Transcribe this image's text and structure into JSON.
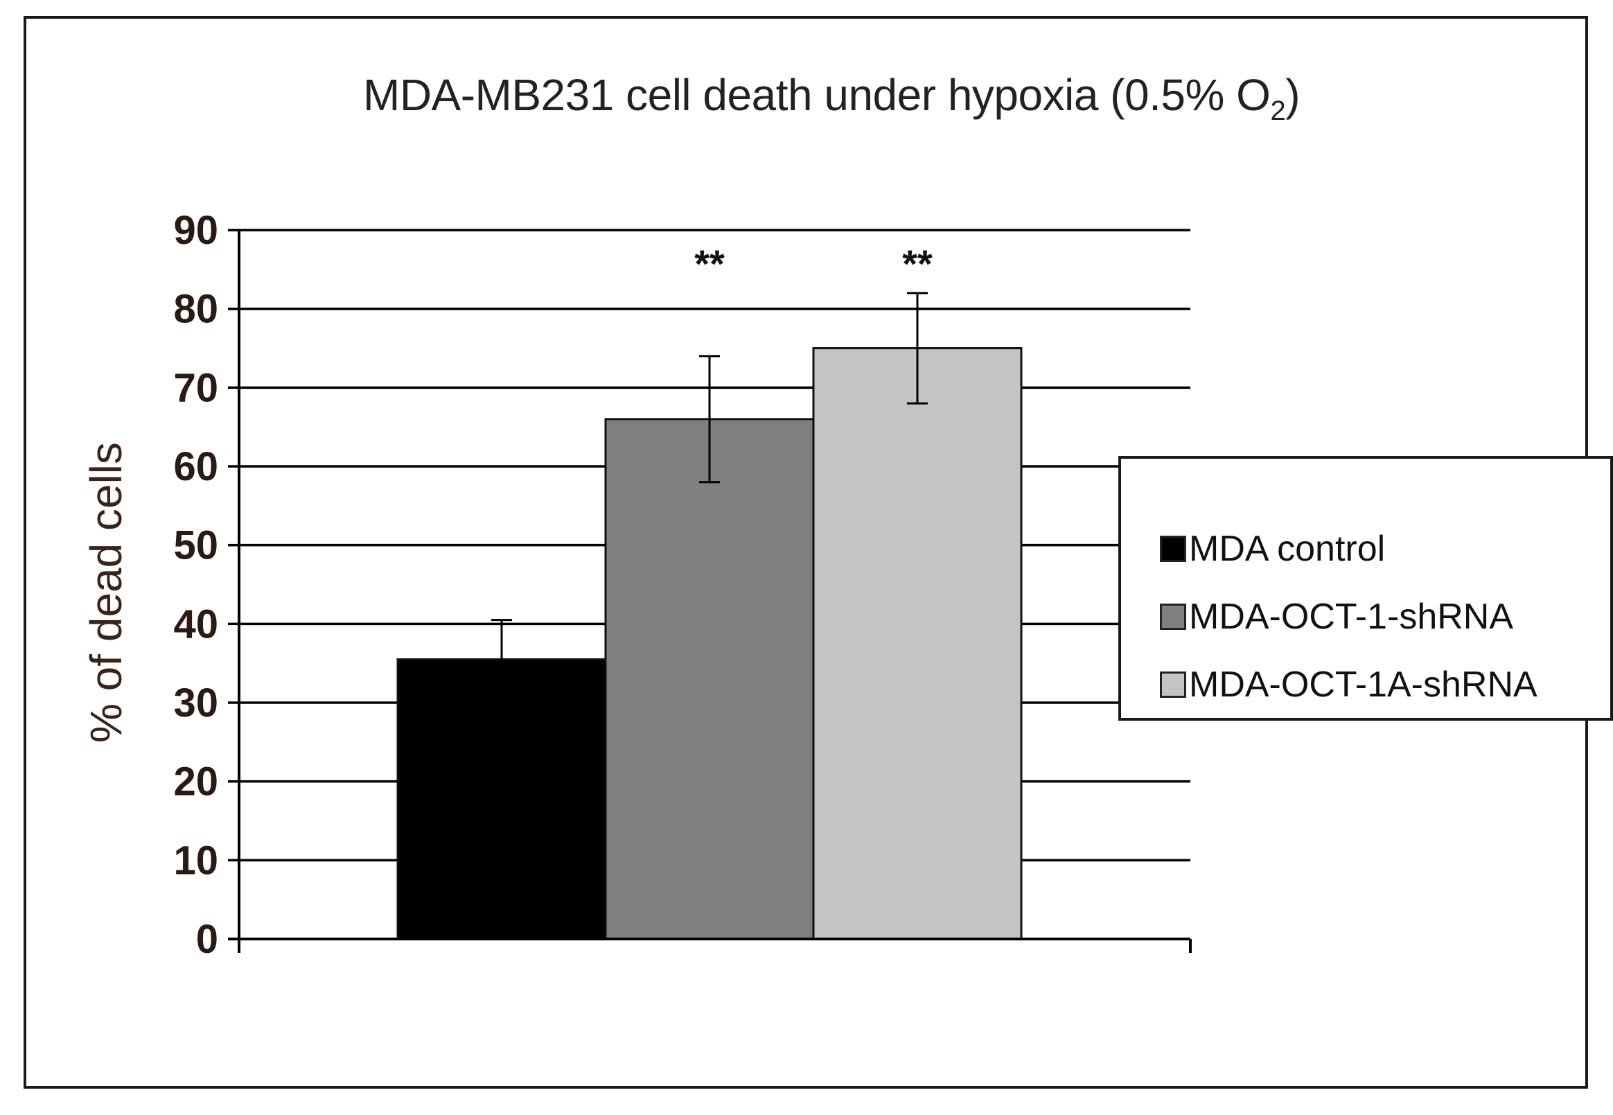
{
  "chart_data": {
    "type": "bar",
    "title": "MDA-MB231 cell death under hypoxia (0.5% O",
    "title_subscript": "2",
    "title_suffix": ")",
    "xlabel": "",
    "ylabel": "% of dead cells",
    "ylim": [
      0,
      90
    ],
    "yticks": [
      0,
      10,
      20,
      30,
      40,
      50,
      60,
      70,
      80,
      90
    ],
    "grid": true,
    "legend_position": "right",
    "series": [
      {
        "name": "MDA control",
        "value": 35.5,
        "error": 5,
        "color": "#000000",
        "significance": ""
      },
      {
        "name": "MDA-OCT-1-shRNA",
        "value": 66,
        "error": 8,
        "color": "#808080",
        "significance": "**"
      },
      {
        "name": "MDA-OCT-1A-shRNA",
        "value": 75,
        "error": 7,
        "color": "#c4c4c4",
        "significance": "**"
      }
    ]
  }
}
